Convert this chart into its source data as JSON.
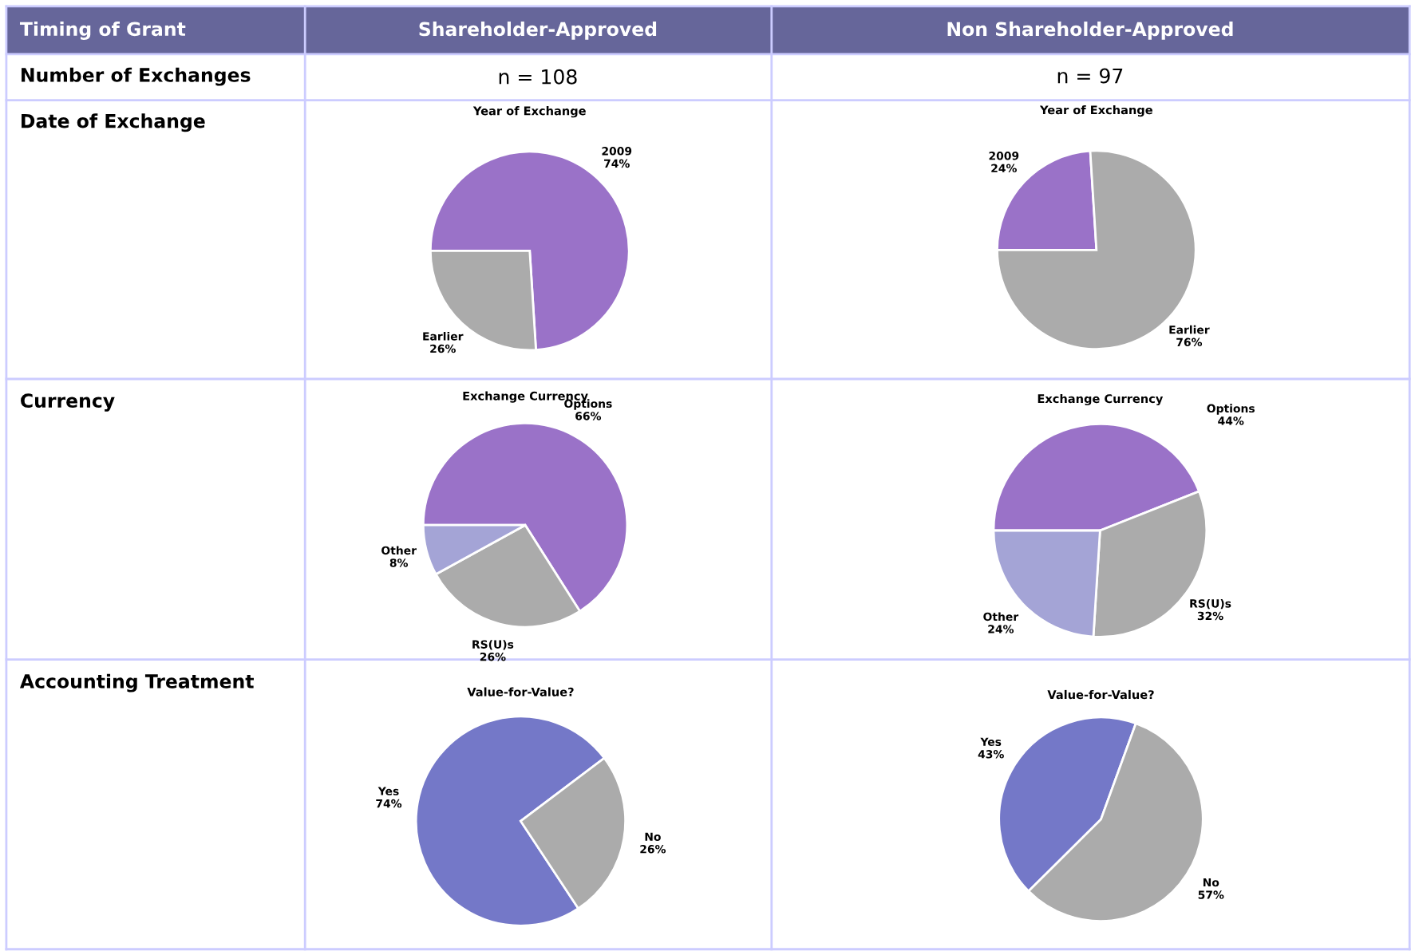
{
  "chart_data": [
    {
      "type": "other",
      "annotations": [
        "Timing of Grant",
        "Shareholder-Approved",
        "Non Shareholder-Approved",
        "Number of Exchanges",
        "n = 108",
        "n = 97",
        "Date of Exchange",
        "Currency",
        "Accounting Treatment"
      ]
    },
    {
      "type": "pie",
      "title": "Year of Exchange",
      "categories": [
        "2009",
        "Earlier"
      ],
      "values": [
        74,
        26
      ],
      "value_labels": [
        "74%",
        "26%"
      ],
      "colors": [
        "#9a72c8",
        "#ababab"
      ]
    },
    {
      "type": "pie",
      "title": "Year of Exchange",
      "categories": [
        "2009",
        "Earlier"
      ],
      "values": [
        24,
        76
      ],
      "value_labels": [
        "24%",
        "76%"
      ],
      "colors": [
        "#9a72c8",
        "#ababab"
      ]
    },
    {
      "type": "pie",
      "title": "Exchange Currency",
      "categories": [
        "Options",
        "RS(U)s",
        "Other"
      ],
      "values": [
        66,
        26,
        8
      ],
      "value_labels": [
        "66%",
        "26%",
        "8%"
      ],
      "colors": [
        "#9a72c8",
        "#ababab",
        "#a4a4d6"
      ]
    },
    {
      "type": "pie",
      "title": "Exchange Currency",
      "categories": [
        "Options",
        "RS(U)s",
        "Other"
      ],
      "values": [
        44,
        32,
        24
      ],
      "value_labels": [
        "44%",
        "32%",
        "24%"
      ],
      "colors": [
        "#9a72c8",
        "#ababab",
        "#a4a4d6"
      ]
    },
    {
      "type": "pie",
      "title": "Value-for-Value?",
      "categories": [
        "Yes",
        "No"
      ],
      "values": [
        74,
        26
      ],
      "value_labels": [
        "74%",
        "26%"
      ],
      "colors": [
        "#7478c8",
        "#ababab"
      ]
    },
    {
      "type": "pie",
      "title": "Value-for-Value?",
      "categories": [
        "Yes",
        "No"
      ],
      "values": [
        43,
        57
      ],
      "value_labels": [
        "43%",
        "57%"
      ],
      "colors": [
        "#7478c8",
        "#ababab"
      ]
    }
  ]
}
